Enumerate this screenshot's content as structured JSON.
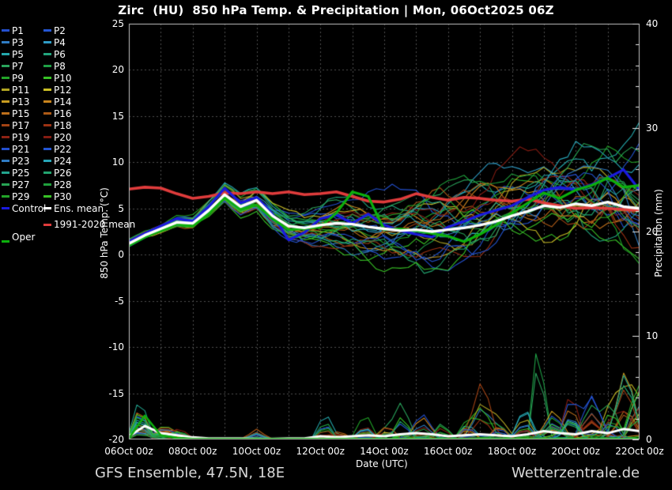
{
  "title": "Zirc  (HU)  850 hPa Temp. & Precipitation | Mon, 06Oct2025 06Z",
  "footer": {
    "left": "GFS Ensemble, 47.5N, 18E",
    "right": "Wetterzentrale.de"
  },
  "legend": {
    "members": [
      {
        "label": "P1",
        "color": "#2450cf"
      },
      {
        "label": "P2",
        "color": "#2456d4"
      },
      {
        "label": "P3",
        "color": "#2f7cc4"
      },
      {
        "label": "P4",
        "color": "#2f9cc6"
      },
      {
        "label": "P5",
        "color": "#24a8ac"
      },
      {
        "label": "P6",
        "color": "#22a57d"
      },
      {
        "label": "P7",
        "color": "#2aa45c"
      },
      {
        "label": "P8",
        "color": "#1fa046"
      },
      {
        "label": "P9",
        "color": "#22a428"
      },
      {
        "label": "P10",
        "color": "#38c226"
      },
      {
        "label": "P11",
        "color": "#b1a522"
      },
      {
        "label": "P12",
        "color": "#cabe25"
      },
      {
        "label": "P13",
        "color": "#c89b20"
      },
      {
        "label": "P14",
        "color": "#c9841d"
      },
      {
        "label": "P15",
        "color": "#bd6f1b"
      },
      {
        "label": "P16",
        "color": "#ad5a16"
      },
      {
        "label": "P17",
        "color": "#a34314"
      },
      {
        "label": "P18",
        "color": "#9c3213"
      },
      {
        "label": "P19",
        "color": "#8e2214"
      },
      {
        "label": "P20",
        "color": "#841c12"
      },
      {
        "label": "P21",
        "color": "#2450cf"
      },
      {
        "label": "P22",
        "color": "#2456d4"
      },
      {
        "label": "P23",
        "color": "#2f7cc4"
      },
      {
        "label": "P24",
        "color": "#27a6b8"
      },
      {
        "label": "P25",
        "color": "#22a48e"
      },
      {
        "label": "P26",
        "color": "#22a46f"
      },
      {
        "label": "P27",
        "color": "#27a454"
      },
      {
        "label": "P28",
        "color": "#1fa03c"
      },
      {
        "label": "P29",
        "color": "#22a428"
      },
      {
        "label": "P30",
        "color": "#38c226"
      }
    ],
    "control": {
      "label": "Control",
      "color": "#1a1adf"
    },
    "ens_mean": {
      "label": "Ens. mean",
      "color": "#ffffff"
    },
    "climate": {
      "label": "1991-2020 mean",
      "color": "#e03c3c"
    },
    "oper": {
      "label": "Oper",
      "color": "#0cb00c"
    }
  },
  "chart_data": {
    "type": "line",
    "title": "Zirc (HU) 850 hPa Temp. & Precipitation | Mon, 06Oct2025 06Z",
    "x_axis": {
      "label": "Date (UTC)",
      "range_days": [
        0,
        16
      ],
      "tick_labels": [
        "06Oct 00z",
        "08Oct 00z",
        "10Oct 00z",
        "12Oct 00z",
        "14Oct 00z",
        "16Oct 00z",
        "18Oct 00z",
        "20Oct 00z",
        "22Oct 00z"
      ],
      "gridline_every_days": 1
    },
    "y_left": {
      "label": "850 hPa Temp. (°C)",
      "min": -20,
      "max": 25,
      "major_tick": 5,
      "ticks": [
        25,
        20,
        15,
        10,
        5,
        0,
        -5,
        -10,
        -15,
        -20
      ]
    },
    "y_right": {
      "label": "Precipitation (mm)",
      "min": 0,
      "max": 40,
      "major_tick": 10,
      "minor_tick": 2,
      "ticks": [
        40,
        30,
        20,
        10,
        0
      ]
    },
    "grid": {
      "on": true,
      "style": "dashed"
    },
    "legend_position": "left",
    "t_step_days": 0.5,
    "series": {
      "ens_mean": {
        "name": "Ens. mean",
        "axis": "left",
        "width": 3.4,
        "temp_halfday": [
          1.2,
          2.1,
          2.8,
          3.5,
          3.4,
          4.8,
          6.5,
          5.2,
          5.9,
          4.2,
          3.1,
          2.9,
          3.2,
          3.4,
          3.3,
          3.0,
          2.8,
          2.6,
          2.7,
          2.5,
          2.7,
          2.9,
          3.2,
          3.6,
          4.2,
          4.7,
          5.3,
          5.1,
          5.5,
          5.3,
          5.7,
          5.2,
          5.0
        ],
        "precip_halfday": [
          0.3,
          1.3,
          0.6,
          0.4,
          0.2,
          0.1,
          0.1,
          0.1,
          0.05,
          0.05,
          0.1,
          0.1,
          0.3,
          0.2,
          0.3,
          0.4,
          0.3,
          0.5,
          0.6,
          0.5,
          0.3,
          0.4,
          0.5,
          0.4,
          0.3,
          0.5,
          0.8,
          0.6,
          0.5,
          0.8,
          0.6,
          1.0,
          0.8
        ]
      },
      "control": {
        "name": "Control",
        "axis": "left",
        "width": 3.2,
        "temp_halfday": [
          1.4,
          2.3,
          3.1,
          3.9,
          3.6,
          5.2,
          7.2,
          5.6,
          6.2,
          4.4,
          1.6,
          2.4,
          3.9,
          4.3,
          3.4,
          4.4,
          3.2,
          2.6,
          2.2,
          1.9,
          3.0,
          3.6,
          4.3,
          4.8,
          5.3,
          6.2,
          7.0,
          7.3,
          7.0,
          7.6,
          8.3,
          9.2,
          7.0
        ]
      },
      "oper": {
        "name": "Oper",
        "axis": "left",
        "width": 3.2,
        "temp_halfday": [
          1.0,
          1.9,
          2.6,
          3.3,
          3.1,
          4.4,
          6.2,
          4.9,
          5.4,
          3.9,
          2.7,
          2.8,
          3.0,
          4.5,
          6.8,
          6.3,
          2.7,
          2.8,
          2.6,
          2.3,
          2.0,
          1.4,
          2.2,
          3.2,
          4.5,
          5.6,
          6.7,
          6.1,
          7.0,
          7.5,
          8.3,
          7.3,
          7.5
        ],
        "precip_halfday": [
          0.1,
          2.3,
          0.4,
          0.15,
          0.05,
          0.05,
          0.05,
          0.05,
          0.05,
          0.05,
          0.05,
          0.05,
          0.05,
          0.05,
          0.05,
          0.05,
          0.05,
          0.05,
          0.05,
          0.05,
          0.05,
          0.05,
          0.05,
          0.05,
          0.05,
          0.05,
          0.05,
          0.05,
          0.05,
          0.05,
          0.05,
          0.05,
          0.05
        ]
      },
      "climate_mean_1991_2020": {
        "name": "1991-2020 mean",
        "axis": "left",
        "width": 3.6,
        "temp_halfday": [
          7.1,
          7.3,
          7.2,
          6.6,
          6.1,
          6.3,
          6.7,
          6.6,
          6.8,
          6.6,
          6.8,
          6.5,
          6.6,
          6.8,
          6.3,
          5.8,
          5.7,
          6.0,
          6.6,
          6.2,
          5.9,
          6.2,
          6.1,
          5.9,
          5.8,
          6.0,
          5.6,
          5.3,
          5.0,
          5.1,
          5.0,
          4.9,
          4.8
        ]
      }
    },
    "ensemble": {
      "count": 30,
      "seed": 7,
      "spread_daily_degC": [
        0.5,
        0.8,
        1.0,
        1.3,
        1.6,
        2.2,
        2.9,
        3.5,
        4.0,
        4.5,
        5.0,
        5.4,
        5.8,
        6.2,
        6.8,
        7.5,
        8.5
      ],
      "precip_events": [
        {
          "day": 0.35,
          "width": 0.18,
          "max_mm": 4.5,
          "p": 1.0
        },
        {
          "day": 1.1,
          "width": 0.25,
          "max_mm": 1.6,
          "p": 0.8
        },
        {
          "day": 1.6,
          "width": 0.2,
          "max_mm": 1.2,
          "p": 0.5
        },
        {
          "day": 4.0,
          "width": 0.2,
          "max_mm": 1.3,
          "p": 0.3
        },
        {
          "day": 6.15,
          "width": 0.18,
          "max_mm": 3.6,
          "p": 0.15
        },
        {
          "day": 6.6,
          "width": 0.15,
          "max_mm": 2.3,
          "p": 0.2
        },
        {
          "day": 7.4,
          "width": 0.2,
          "max_mm": 2.6,
          "p": 0.2
        },
        {
          "day": 8.1,
          "width": 0.2,
          "max_mm": 2.2,
          "p": 0.25
        },
        {
          "day": 8.55,
          "width": 0.2,
          "max_mm": 5.6,
          "p": 0.12
        },
        {
          "day": 9.2,
          "width": 0.25,
          "max_mm": 4.0,
          "p": 0.2
        },
        {
          "day": 9.8,
          "width": 0.2,
          "max_mm": 2.6,
          "p": 0.25
        },
        {
          "day": 10.6,
          "width": 0.2,
          "max_mm": 3.0,
          "p": 0.2
        },
        {
          "day": 11.05,
          "width": 0.25,
          "max_mm": 6.6,
          "p": 0.12
        },
        {
          "day": 11.6,
          "width": 0.2,
          "max_mm": 2.8,
          "p": 0.3
        },
        {
          "day": 12.4,
          "width": 0.2,
          "max_mm": 3.2,
          "p": 0.3
        },
        {
          "day": 12.85,
          "width": 0.12,
          "max_mm": 12.5,
          "p": 0.06
        },
        {
          "day": 13.3,
          "width": 0.25,
          "max_mm": 3.4,
          "p": 0.3
        },
        {
          "day": 13.85,
          "width": 0.2,
          "max_mm": 5.6,
          "p": 0.2
        },
        {
          "day": 14.5,
          "width": 0.25,
          "max_mm": 6.2,
          "p": 0.25
        },
        {
          "day": 15.1,
          "width": 0.2,
          "max_mm": 5.0,
          "p": 0.3
        },
        {
          "day": 15.55,
          "width": 0.25,
          "max_mm": 8.2,
          "p": 0.25
        },
        {
          "day": 15.95,
          "width": 0.2,
          "max_mm": 7.5,
          "p": 0.35
        }
      ]
    },
    "colors": {
      "background": "#000000",
      "border": "#c4c4c4",
      "grid": "#4f4f4f",
      "tick": "#e8e8e8"
    }
  }
}
